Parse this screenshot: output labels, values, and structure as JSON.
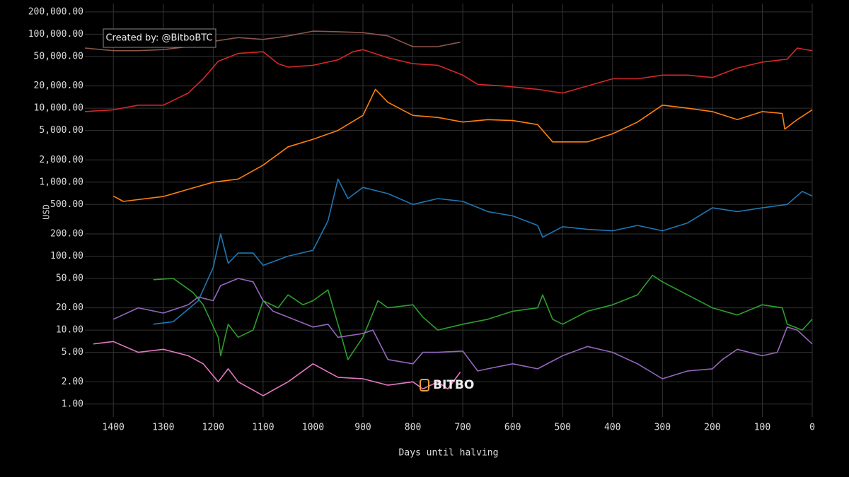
{
  "chart_data": {
    "type": "line",
    "xlabel": "Days until halving",
    "ylabel": "USD",
    "annotation": "Created by: @BitboBTC",
    "watermark": "BITBO",
    "log_y": true,
    "x_reversed": true,
    "grid": true,
    "xlim": [
      1457,
      0
    ],
    "ylim": [
      0.67,
      260000
    ],
    "xticks": [
      1400,
      1300,
      1200,
      1100,
      1000,
      900,
      800,
      700,
      600,
      500,
      400,
      300,
      200,
      100,
      0
    ],
    "yticks": [
      {
        "value": 1,
        "label": "1.00"
      },
      {
        "value": 2,
        "label": "2.00"
      },
      {
        "value": 5,
        "label": "5.00"
      },
      {
        "value": 10,
        "label": "10.00"
      },
      {
        "value": 20,
        "label": "20.00"
      },
      {
        "value": 50,
        "label": "50.00"
      },
      {
        "value": 100,
        "label": "100.00"
      },
      {
        "value": 200,
        "label": "200.00"
      },
      {
        "value": 500,
        "label": "500.00"
      },
      {
        "value": 1000,
        "label": "1,000.00"
      },
      {
        "value": 2000,
        "label": "2,000.00"
      },
      {
        "value": 5000,
        "label": "5,000.00"
      },
      {
        "value": 10000,
        "label": "10,000.00"
      },
      {
        "value": 20000,
        "label": "20,000.00"
      },
      {
        "value": 50000,
        "label": "50,000.00"
      },
      {
        "value": 100000,
        "label": "100,000.00"
      },
      {
        "value": 200000,
        "label": "200,000.00"
      }
    ],
    "series": [
      {
        "color": "#8c564b",
        "x": [
          1457,
          1400,
          1350,
          1300,
          1250,
          1200,
          1150,
          1100,
          1050,
          1000,
          950,
          900,
          850,
          800,
          750,
          705
        ],
        "values": [
          65000,
          60000,
          60000,
          62000,
          68000,
          80000,
          90000,
          85000,
          95000,
          110000,
          108000,
          105000,
          95000,
          68000,
          68000,
          78000
        ]
      },
      {
        "color": "#d62728",
        "x": [
          1457,
          1400,
          1350,
          1300,
          1250,
          1220,
          1190,
          1150,
          1100,
          1070,
          1050,
          1000,
          950,
          920,
          900,
          850,
          800,
          750,
          700,
          670,
          620,
          550,
          500,
          450,
          400,
          350,
          300,
          250,
          200,
          150,
          100,
          50,
          30,
          0
        ],
        "values": [
          9000,
          9500,
          11000,
          11000,
          16000,
          25000,
          43000,
          55000,
          58000,
          40000,
          36000,
          38000,
          45000,
          58000,
          62000,
          48000,
          40000,
          38000,
          28000,
          21000,
          20000,
          18000,
          16000,
          20000,
          25000,
          25000,
          28000,
          28000,
          26000,
          35000,
          42000,
          46000,
          65000,
          60000
        ]
      },
      {
        "color": "#ff7f0e",
        "x": [
          1400,
          1380,
          1300,
          1250,
          1200,
          1150,
          1100,
          1050,
          1000,
          950,
          900,
          875,
          850,
          800,
          750,
          700,
          650,
          600,
          550,
          520,
          450,
          400,
          350,
          300,
          250,
          200,
          150,
          100,
          60,
          55,
          30,
          0
        ],
        "values": [
          650,
          550,
          640,
          800,
          1000,
          1100,
          1700,
          3000,
          3800,
          5000,
          8000,
          18000,
          12000,
          8000,
          7500,
          6500,
          7000,
          6800,
          6000,
          3500,
          3500,
          4500,
          6500,
          11000,
          10000,
          9000,
          7000,
          9000,
          8500,
          5200,
          7000,
          9500
        ]
      },
      {
        "color": "#1f77b4",
        "x": [
          1320,
          1280,
          1230,
          1200,
          1185,
          1170,
          1150,
          1120,
          1100,
          1050,
          1000,
          970,
          950,
          930,
          900,
          850,
          800,
          750,
          700,
          650,
          600,
          550,
          540,
          500,
          450,
          400,
          350,
          300,
          250,
          200,
          150,
          100,
          50,
          20,
          0
        ],
        "values": [
          12,
          13,
          25,
          70,
          200,
          80,
          110,
          110,
          75,
          100,
          120,
          300,
          1100,
          600,
          850,
          700,
          500,
          600,
          550,
          400,
          350,
          260,
          180,
          250,
          230,
          220,
          260,
          220,
          280,
          450,
          400,
          450,
          500,
          750,
          650
        ]
      },
      {
        "color": "#2ca02c",
        "x": [
          1320,
          1280,
          1240,
          1220,
          1190,
          1185,
          1170,
          1150,
          1120,
          1100,
          1070,
          1050,
          1020,
          1000,
          970,
          950,
          930,
          900,
          870,
          850,
          800,
          780,
          750,
          700,
          650,
          600,
          550,
          540,
          520,
          500,
          450,
          400,
          350,
          320,
          300,
          250,
          200,
          150,
          100,
          60,
          50,
          20,
          0
        ],
        "values": [
          48,
          50,
          32,
          22,
          8,
          4.5,
          12,
          8,
          10,
          25,
          20,
          30,
          22,
          25,
          35,
          12,
          4,
          8,
          25,
          20,
          22,
          15,
          10,
          12,
          14,
          18,
          20,
          30,
          14,
          12,
          18,
          22,
          30,
          55,
          45,
          30,
          20,
          16,
          22,
          20,
          12,
          10,
          14
        ]
      },
      {
        "color": "#9467bd",
        "x": [
          1400,
          1350,
          1300,
          1250,
          1230,
          1200,
          1185,
          1150,
          1120,
          1100,
          1080,
          1050,
          1000,
          970,
          950,
          900,
          880,
          850,
          800,
          780,
          750,
          700,
          670,
          650,
          600,
          550,
          500,
          450,
          400,
          350,
          300,
          250,
          200,
          180,
          150,
          100,
          70,
          50,
          30,
          0
        ],
        "values": [
          14,
          20,
          17,
          22,
          28,
          25,
          40,
          50,
          45,
          25,
          18,
          15,
          11,
          12,
          8,
          9,
          10,
          4,
          3.5,
          5,
          5,
          5.2,
          2.8,
          3,
          3.5,
          3,
          4.5,
          6,
          5,
          3.5,
          2.2,
          2.8,
          3,
          4,
          5.5,
          4.5,
          5,
          11,
          10,
          6.5
        ]
      },
      {
        "color": "#e377c2",
        "x": [
          1440,
          1400,
          1350,
          1300,
          1250,
          1220,
          1190,
          1170,
          1150,
          1100,
          1050,
          1000,
          950,
          900,
          850,
          800,
          780,
          750,
          730,
          705
        ],
        "values": [
          6.5,
          7,
          5,
          5.5,
          4.5,
          3.5,
          2,
          3,
          2,
          1.3,
          2,
          3.5,
          2.3,
          2.2,
          1.8,
          2,
          1.6,
          2,
          1.6,
          2.7
        ]
      }
    ]
  }
}
